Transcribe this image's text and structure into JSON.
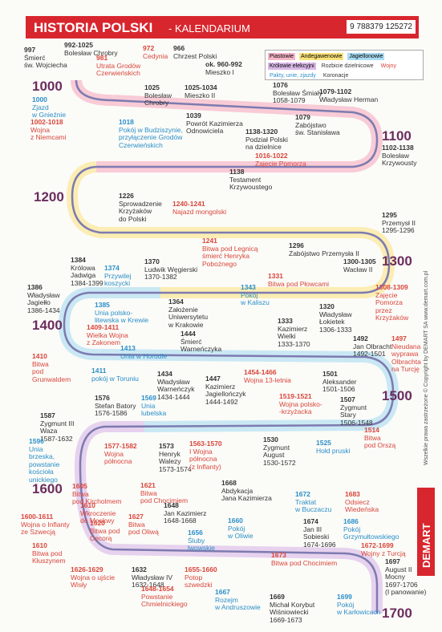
{
  "header": {
    "title": "HISTORIA POLSKI",
    "subtitle": "- KALENDARIUM",
    "isbn": "9 788379 125272"
  },
  "legend": {
    "items": [
      {
        "label": "Piastowie",
        "color": "#f6b6c8"
      },
      {
        "label": "Andegawenowie",
        "color": "#fbe27a"
      },
      {
        "label": "Jagiellonowie",
        "color": "#a9dcf2"
      },
      {
        "label": "Królowie elekcyjni",
        "color": "#d9b8e8"
      }
    ],
    "notes": [
      {
        "label": "Rozbicie dzielnicowe",
        "color": "#333333"
      },
      {
        "label": "Wojny",
        "color": "#d9453a"
      },
      {
        "label": "Pakty, unie, zjazdy",
        "color": "#2b8fc8"
      },
      {
        "label": "Koronacje",
        "color": "#333333"
      }
    ]
  },
  "centuries": [
    "1000",
    "1100",
    "1200",
    "1300",
    "1400",
    "1500",
    "1600",
    "1700"
  ],
  "events": [
    {
      "date": "997",
      "lines": [
        "Śmierć",
        "św. Wojciecha"
      ],
      "color": "#333333"
    },
    {
      "date": "992-1025",
      "lines": [
        "Bolesław Chrobry"
      ],
      "color": "#333333"
    },
    {
      "date": "981",
      "lines": [
        "Utrata Grodów",
        "Czerwieńskich"
      ],
      "color": "#d9453a"
    },
    {
      "date": "972",
      "lines": [
        "Cedynia"
      ],
      "color": "#d9453a"
    },
    {
      "date": "966",
      "lines": [
        "Chrzest Polski"
      ],
      "color": "#333333"
    },
    {
      "date": "ok. 960-992",
      "lines": [
        "Mieszko I"
      ],
      "color": "#333333"
    },
    {
      "date": "1000",
      "lines": [
        "Zjazd",
        "w Gnieźnie"
      ],
      "color": "#2b8fc8"
    },
    {
      "date": "1002-1018",
      "lines": [
        "Wojna",
        "z Niemcami"
      ],
      "color": "#d9453a"
    },
    {
      "date": "1025",
      "lines": [
        "Bolesław",
        "Chrobry"
      ],
      "color": "#333333"
    },
    {
      "date": "1025-1034",
      "lines": [
        "Mieszko II"
      ],
      "color": "#333333"
    },
    {
      "date": "1018",
      "lines": [
        "Pokój w Budziszynie,",
        "przyłączenie Grodów",
        "Czerwieńskich"
      ],
      "color": "#2b8fc8"
    },
    {
      "date": "1039",
      "lines": [
        "Powrót Kazimierza",
        "Odnowiciela"
      ],
      "color": "#333333"
    },
    {
      "date": "1076",
      "lines": [
        "Bolesław Śmiały",
        "1058-1079"
      ],
      "color": "#333333"
    },
    {
      "date": "1079-1102",
      "lines": [
        "Władysław Herman"
      ],
      "color": "#333333"
    },
    {
      "date": "1079",
      "lines": [
        "Zabójstwo",
        "św. Stanisława"
      ],
      "color": "#333333"
    },
    {
      "date": "1138-1320",
      "lines": [
        "Podział Polski",
        "na dzielnice"
      ],
      "color": "#333333"
    },
    {
      "date": "1016-1022",
      "lines": [
        "Zajęcie Pomorza"
      ],
      "color": "#d9453a"
    },
    {
      "date": "1102-1138",
      "lines": [
        "Bolesław",
        "Krzywousty"
      ],
      "color": "#333333"
    },
    {
      "date": "1138",
      "lines": [
        "Testament",
        "Krzywoustego"
      ],
      "color": "#333333"
    },
    {
      "date": "1226",
      "lines": [
        "Sprowadzenie",
        "Krzyżaków",
        "do Polski"
      ],
      "color": "#333333"
    },
    {
      "date": "1240-1241",
      "lines": [
        "Najazd mongolski"
      ],
      "color": "#d9453a"
    },
    {
      "date": "1241",
      "lines": [
        "Bitwa pod Legnicą",
        "śmierć Henryka",
        "Pobożnego"
      ],
      "color": "#d9453a"
    },
    {
      "date": "1295",
      "lines": [
        "Przemysł II",
        "1295-1296"
      ],
      "color": "#333333"
    },
    {
      "date": "1296",
      "lines": [
        "Zabójstwo Przemysła II"
      ],
      "color": "#333333"
    },
    {
      "date": "1331",
      "lines": [
        "Bitwa pod Płowcami"
      ],
      "color": "#d9453a"
    },
    {
      "date": "1320",
      "lines": [
        "Władysław",
        "Łokietek",
        "1306-1333"
      ],
      "color": "#333333"
    },
    {
      "date": "1300-1305",
      "lines": [
        "Wacław II"
      ],
      "color": "#333333"
    },
    {
      "date": "1308-1309",
      "lines": [
        "Zajęcie",
        "Pomorza",
        "przez",
        "Krzyżaków"
      ],
      "color": "#d9453a"
    },
    {
      "date": "1384",
      "lines": [
        "Królowa",
        "Jadwiga",
        "1384-1399"
      ],
      "color": "#333333"
    },
    {
      "date": "1374",
      "lines": [
        "Przywilej",
        "koszycki"
      ],
      "color": "#2b8fc8"
    },
    {
      "date": "1370",
      "lines": [
        "Ludwik Węgierski",
        "1370-1382"
      ],
      "color": "#333333"
    },
    {
      "date": "1386",
      "lines": [
        "Władysław",
        "Jagiełło",
        "1386-1434"
      ],
      "color": "#333333"
    },
    {
      "date": "1385",
      "lines": [
        "Unia polsko-",
        "litewska w Krewie"
      ],
      "color": "#2b8fc8"
    },
    {
      "date": "1364",
      "lines": [
        "Założenie",
        "Uniwersytetu",
        "w Krakowie"
      ],
      "color": "#333333"
    },
    {
      "date": "1343",
      "lines": [
        "Pokój",
        "w Kaliszu"
      ],
      "color": "#2b8fc8"
    },
    {
      "date": "1333",
      "lines": [
        "Kazimierz",
        "Wielki",
        "1333-1370"
      ],
      "color": "#333333"
    },
    {
      "date": "1409-1411",
      "lines": [
        "Wielka Wojna",
        "z Zakonem"
      ],
      "color": "#d9453a"
    },
    {
      "date": "1413",
      "lines": [
        "Unia w Horodle"
      ],
      "color": "#2b8fc8"
    },
    {
      "date": "1444",
      "lines": [
        "Śmierć",
        "Warneńczyka"
      ],
      "color": "#333333"
    },
    {
      "date": "1492",
      "lines": [
        "Jan Olbracht",
        "1492-1501"
      ],
      "color": "#333333"
    },
    {
      "date": "1497",
      "lines": [
        "Nieudana",
        "wyprawa",
        "Olbrachta",
        "na Turcję"
      ],
      "color": "#d9453a"
    },
    {
      "date": "1410",
      "lines": [
        "Bitwa",
        "pod",
        "Grunwaldem"
      ],
      "color": "#d9453a"
    },
    {
      "date": "1411",
      "lines": [
        "pokój w Toruniu"
      ],
      "color": "#2b8fc8"
    },
    {
      "date": "1434",
      "lines": [
        "Władysław",
        "Warneńczyk",
        "1434-1444"
      ],
      "color": "#333333"
    },
    {
      "date": "1447",
      "lines": [
        "Kazimierz",
        "Jagiellończyk",
        "1444-1492"
      ],
      "color": "#333333"
    },
    {
      "date": "1454-1466",
      "lines": [
        "Wojna 13-letnia"
      ],
      "color": "#d9453a"
    },
    {
      "date": "1501",
      "lines": [
        "Aleksander",
        "1501-1506"
      ],
      "color": "#333333"
    },
    {
      "date": "1519-1521",
      "lines": [
        "Wojna polsko-",
        "-krzyżacka"
      ],
      "color": "#d9453a"
    },
    {
      "date": "1507",
      "lines": [
        "Zygmunt",
        "Stary",
        "1506-1548"
      ],
      "color": "#333333"
    },
    {
      "date": "1514",
      "lines": [
        "Bitwa",
        "pod Orszą"
      ],
      "color": "#d9453a"
    },
    {
      "date": "1576",
      "lines": [
        "Stefan Batory",
        "1576-1586"
      ],
      "color": "#333333"
    },
    {
      "date": "1569",
      "lines": [
        "Unia",
        "lubelska"
      ],
      "color": "#2b8fc8"
    },
    {
      "date": "1587",
      "lines": [
        "Zygmunt III",
        "Waza",
        "1587-1632"
      ],
      "color": "#333333"
    },
    {
      "date": "1596",
      "lines": [
        "Unia",
        "brzeska,",
        "powstanie",
        "kościoła",
        "unickiego"
      ],
      "color": "#2b8fc8"
    },
    {
      "date": "1577-1582",
      "lines": [
        "Wojna",
        "północna"
      ],
      "color": "#d9453a"
    },
    {
      "date": "1573",
      "lines": [
        "Henryk",
        "Walezy",
        "1573-1574"
      ],
      "color": "#333333"
    },
    {
      "date": "1563-1570",
      "lines": [
        "I Wojna",
        "północna",
        "(z Inflanty)"
      ],
      "color": "#d9453a"
    },
    {
      "date": "1530",
      "lines": [
        "Zygmunt",
        "August",
        "1530-1572"
      ],
      "color": "#333333"
    },
    {
      "date": "1525",
      "lines": [
        "Hołd pruski"
      ],
      "color": "#2b8fc8"
    },
    {
      "date": "1605",
      "lines": [
        "Bitwa",
        "pod Kircholmem"
      ],
      "color": "#d9453a"
    },
    {
      "date": "1621",
      "lines": [
        "Bitwa",
        "pod Chocimiem"
      ],
      "color": "#d9453a"
    },
    {
      "date": "1610",
      "lines": [
        "Wkroczenie",
        "do Moskwy"
      ],
      "color": "#d9453a"
    },
    {
      "date": "1620",
      "lines": [
        "Bitwa pod",
        "Cecorą"
      ],
      "color": "#d9453a"
    },
    {
      "date": "1627",
      "lines": [
        "Bitwa",
        "pod Oliwą"
      ],
      "color": "#d9453a"
    },
    {
      "date": "1648",
      "lines": [
        "Jan Kazimierz",
        "1648-1668"
      ],
      "color": "#333333"
    },
    {
      "date": "1668",
      "lines": [
        "Abdykacja",
        "Jana Kazimierza"
      ],
      "color": "#333333"
    },
    {
      "date": "1672",
      "lines": [
        "Traktat",
        "w Buczaczu"
      ],
      "color": "#2b8fc8"
    },
    {
      "date": "1683",
      "lines": [
        "Odsiecz",
        "Wiedeńska"
      ],
      "color": "#d9453a"
    },
    {
      "date": "1600-1611",
      "lines": [
        "Wojna o Inflanty",
        "ze Szwecją"
      ],
      "color": "#d9453a"
    },
    {
      "date": "1660",
      "lines": [
        "Pokój",
        "w Oliwie"
      ],
      "color": "#2b8fc8"
    },
    {
      "date": "1674",
      "lines": [
        "Jan III",
        "Sobieski",
        "1674-1696"
      ],
      "color": "#333333"
    },
    {
      "date": "1686",
      "lines": [
        "Pokój",
        "Grzymułtowskiego"
      ],
      "color": "#2b8fc8"
    },
    {
      "date": "1610",
      "lines": [
        "Bitwa pod",
        "Kłuszynem"
      ],
      "color": "#d9453a"
    },
    {
      "date": "1656",
      "lines": [
        "Śluby",
        "lwowskie"
      ],
      "color": "#2b8fc8"
    },
    {
      "date": "1672-1699",
      "lines": [
        "Wojny z Turcją"
      ],
      "color": "#d9453a"
    },
    {
      "date": "1626-1629",
      "lines": [
        "Wojna o ujście",
        "Wisły"
      ],
      "color": "#d9453a"
    },
    {
      "date": "1632",
      "lines": [
        "Władysław IV",
        "1632-1648"
      ],
      "color": "#333333"
    },
    {
      "date": "1655-1660",
      "lines": [
        "Potop",
        "szwedzki"
      ],
      "color": "#d9453a"
    },
    {
      "date": "1667",
      "lines": [
        "Rozejm",
        "w Andruszowie"
      ],
      "color": "#2b8fc8"
    },
    {
      "date": "1673",
      "lines": [
        "Bitwa pod Chocimiem"
      ],
      "color": "#d9453a"
    },
    {
      "date": "1669",
      "lines": [
        "Michał Korybut",
        "Wiśniowiecki",
        "1669-1673"
      ],
      "color": "#333333"
    },
    {
      "date": "1648-1654",
      "lines": [
        "Powstanie",
        "Chmielnickiego"
      ],
      "color": "#d9453a"
    },
    {
      "date": "1699",
      "lines": [
        "Pokój",
        "w Karłowicach"
      ],
      "color": "#2b8fc8"
    },
    {
      "date": "1697",
      "lines": [
        "August II",
        "Mocny",
        "1697-1706",
        "(I panowanie)"
      ],
      "color": "#333333"
    }
  ],
  "side_note": "Wszelkie prawa zastrzeżone © Copyright by DEMART SA www.demart.com.pl",
  "brand": "DEMART"
}
